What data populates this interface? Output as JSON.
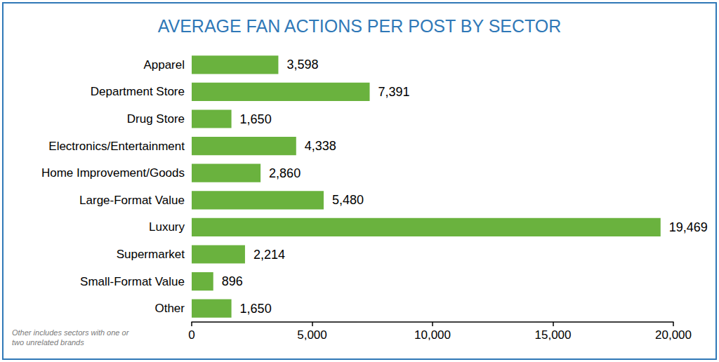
{
  "chart_data": {
    "type": "bar",
    "title": "AVERAGE FAN ACTIONS PER POST BY SECTOR",
    "orientation": "horizontal",
    "categories": [
      "Apparel",
      "Department Store",
      "Drug Store",
      "Electronics/Entertainment",
      "Home Improvement/Goods",
      "Large-Format Value",
      "Luxury",
      "Supermarket",
      "Small-Format Value",
      "Other"
    ],
    "values": [
      3598,
      7391,
      1650,
      4338,
      2860,
      5480,
      19469,
      2214,
      896,
      1650
    ],
    "value_labels": [
      "3,598",
      "7,391",
      "1,650",
      "4,338",
      "2,860",
      "5,480",
      "19,469",
      "2,214",
      "896",
      "1,650"
    ],
    "color": "#6ab23e",
    "xlim": [
      0,
      20000
    ],
    "xticks": [
      0,
      {
        "value": 5000,
        "label": "5,000"
      },
      {
        "value": 10000,
        "label": "10,000"
      },
      {
        "value": 15000,
        "label": "15,000"
      },
      {
        "value": 20000,
        "label": "20,000"
      }
    ],
    "grid": false,
    "data_labels": true,
    "annotations": [
      "Other includes sectors with one or two unrelated brands"
    ]
  }
}
